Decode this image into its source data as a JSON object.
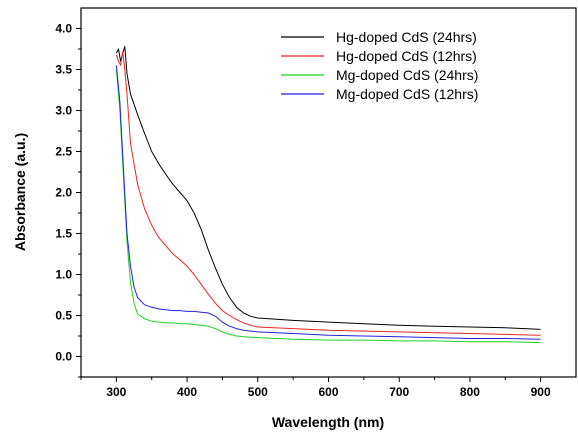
{
  "chart_data": {
    "type": "line",
    "xlabel": "Wavelength (nm)",
    "ylabel": "Absorbance (a.u.)",
    "xlim": [
      250,
      950
    ],
    "ylim": [
      -0.25,
      4.25
    ],
    "x_ticks": [
      "300",
      "400",
      "500",
      "600",
      "700",
      "800",
      "900"
    ],
    "y_ticks": [
      "0.0",
      "0.5",
      "1.0",
      "1.5",
      "2.0",
      "2.5",
      "3.0",
      "3.5",
      "4.0"
    ],
    "grid": false,
    "legend_position": "top-right",
    "series": [
      {
        "name": "Hg-doped CdS (24hrs)",
        "color": "#000000",
        "points": [
          [
            300,
            3.7
          ],
          [
            303,
            3.75
          ],
          [
            306,
            3.6
          ],
          [
            309,
            3.7
          ],
          [
            312,
            3.78
          ],
          [
            315,
            3.45
          ],
          [
            320,
            3.2
          ],
          [
            330,
            2.95
          ],
          [
            340,
            2.72
          ],
          [
            350,
            2.5
          ],
          [
            360,
            2.35
          ],
          [
            370,
            2.22
          ],
          [
            380,
            2.1
          ],
          [
            390,
            2.0
          ],
          [
            400,
            1.9
          ],
          [
            410,
            1.75
          ],
          [
            420,
            1.55
          ],
          [
            430,
            1.3
          ],
          [
            440,
            1.08
          ],
          [
            450,
            0.88
          ],
          [
            460,
            0.72
          ],
          [
            470,
            0.6
          ],
          [
            480,
            0.53
          ],
          [
            490,
            0.49
          ],
          [
            500,
            0.47
          ],
          [
            550,
            0.44
          ],
          [
            600,
            0.42
          ],
          [
            650,
            0.4
          ],
          [
            700,
            0.38
          ],
          [
            750,
            0.37
          ],
          [
            800,
            0.36
          ],
          [
            850,
            0.35
          ],
          [
            900,
            0.33
          ]
        ]
      },
      {
        "name": "Hg-doped CdS (12hrs)",
        "color": "#e8251f",
        "points": [
          [
            300,
            3.68
          ],
          [
            303,
            3.6
          ],
          [
            306,
            3.55
          ],
          [
            309,
            3.72
          ],
          [
            312,
            3.5
          ],
          [
            315,
            3.2
          ],
          [
            320,
            2.6
          ],
          [
            330,
            2.1
          ],
          [
            340,
            1.8
          ],
          [
            350,
            1.6
          ],
          [
            360,
            1.45
          ],
          [
            370,
            1.35
          ],
          [
            380,
            1.25
          ],
          [
            390,
            1.18
          ],
          [
            400,
            1.1
          ],
          [
            410,
            1.0
          ],
          [
            420,
            0.88
          ],
          [
            430,
            0.76
          ],
          [
            440,
            0.65
          ],
          [
            450,
            0.56
          ],
          [
            460,
            0.5
          ],
          [
            470,
            0.45
          ],
          [
            480,
            0.41
          ],
          [
            490,
            0.38
          ],
          [
            500,
            0.36
          ],
          [
            550,
            0.34
          ],
          [
            600,
            0.32
          ],
          [
            650,
            0.31
          ],
          [
            700,
            0.3
          ],
          [
            750,
            0.29
          ],
          [
            800,
            0.28
          ],
          [
            850,
            0.27
          ],
          [
            900,
            0.26
          ]
        ]
      },
      {
        "name": "Mg-doped CdS (24hrs)",
        "color": "#1fd21f",
        "points": [
          [
            300,
            3.5
          ],
          [
            305,
            3.0
          ],
          [
            310,
            2.2
          ],
          [
            315,
            1.4
          ],
          [
            320,
            0.9
          ],
          [
            325,
            0.65
          ],
          [
            330,
            0.52
          ],
          [
            340,
            0.46
          ],
          [
            350,
            0.43
          ],
          [
            360,
            0.42
          ],
          [
            370,
            0.41
          ],
          [
            380,
            0.41
          ],
          [
            390,
            0.4
          ],
          [
            400,
            0.4
          ],
          [
            410,
            0.39
          ],
          [
            420,
            0.38
          ],
          [
            430,
            0.37
          ],
          [
            440,
            0.34
          ],
          [
            450,
            0.3
          ],
          [
            460,
            0.27
          ],
          [
            470,
            0.25
          ],
          [
            480,
            0.24
          ],
          [
            500,
            0.23
          ],
          [
            550,
            0.21
          ],
          [
            600,
            0.2
          ],
          [
            650,
            0.2
          ],
          [
            700,
            0.19
          ],
          [
            750,
            0.19
          ],
          [
            800,
            0.18
          ],
          [
            850,
            0.18
          ],
          [
            900,
            0.17
          ]
        ]
      },
      {
        "name": "Mg-doped CdS (12hrs)",
        "color": "#2222dd",
        "points": [
          [
            300,
            3.55
          ],
          [
            305,
            3.1
          ],
          [
            310,
            2.3
          ],
          [
            315,
            1.5
          ],
          [
            320,
            1.1
          ],
          [
            325,
            0.85
          ],
          [
            330,
            0.72
          ],
          [
            340,
            0.63
          ],
          [
            350,
            0.6
          ],
          [
            360,
            0.58
          ],
          [
            370,
            0.57
          ],
          [
            380,
            0.56
          ],
          [
            390,
            0.56
          ],
          [
            400,
            0.55
          ],
          [
            410,
            0.55
          ],
          [
            420,
            0.54
          ],
          [
            430,
            0.53
          ],
          [
            440,
            0.49
          ],
          [
            450,
            0.42
          ],
          [
            460,
            0.37
          ],
          [
            470,
            0.34
          ],
          [
            480,
            0.32
          ],
          [
            500,
            0.3
          ],
          [
            550,
            0.28
          ],
          [
            600,
            0.26
          ],
          [
            650,
            0.25
          ],
          [
            700,
            0.24
          ],
          [
            750,
            0.23
          ],
          [
            800,
            0.22
          ],
          [
            850,
            0.22
          ],
          [
            900,
            0.21
          ]
        ]
      }
    ]
  }
}
